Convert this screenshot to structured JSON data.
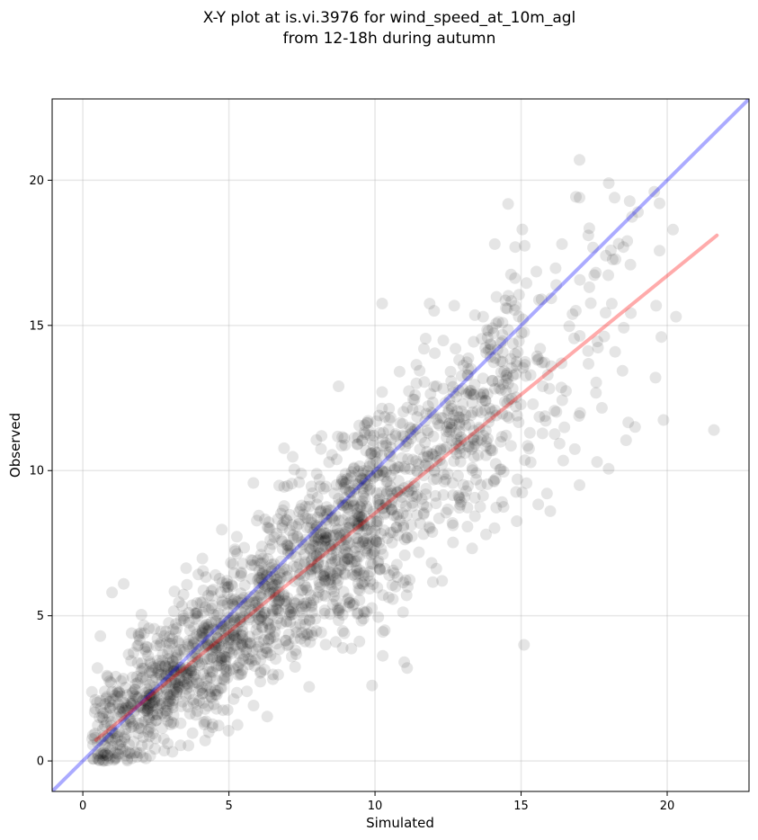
{
  "chart_data": {
    "type": "scatter",
    "title_line1": "X-Y plot at is.vi.3976 for wind_speed_at_10m_agl",
    "title_line2": "from 12-18h during autumn",
    "xlabel": "Simulated",
    "ylabel": "Observed",
    "xlim": [
      -1.05,
      22.8
    ],
    "ylim": [
      -1.05,
      22.8
    ],
    "xticks": [
      0,
      5,
      10,
      15,
      20
    ],
    "yticks": [
      0,
      5,
      10,
      15,
      20
    ],
    "grid": true,
    "point_color": "#000000",
    "point_alpha": 0.1,
    "points_source": "dense cloud of ~2000 observations centered along y≈0.83x+0.35, spread ±~1.6 m/s, plus visible outliers listed below",
    "outliers": [
      {
        "x": 17.0,
        "y": 20.7
      },
      {
        "x": 18.0,
        "y": 19.9
      },
      {
        "x": 18.2,
        "y": 19.4
      },
      {
        "x": 17.0,
        "y": 19.4
      },
      {
        "x": 19.0,
        "y": 18.9
      },
      {
        "x": 20.2,
        "y": 18.3
      },
      {
        "x": 17.3,
        "y": 18.1
      },
      {
        "x": 14.1,
        "y": 17.8
      },
      {
        "x": 14.8,
        "y": 17.7
      },
      {
        "x": 16.4,
        "y": 17.8
      },
      {
        "x": 18.5,
        "y": 17.7
      },
      {
        "x": 17.9,
        "y": 17.4
      },
      {
        "x": 20.3,
        "y": 15.3
      },
      {
        "x": 21.6,
        "y": 11.4
      },
      {
        "x": 15.1,
        "y": 4.0
      },
      {
        "x": 16.0,
        "y": 8.6
      },
      {
        "x": 0.5,
        "y": 3.2
      },
      {
        "x": 0.6,
        "y": 4.3
      },
      {
        "x": 0.7,
        "y": 0.0
      },
      {
        "x": 1.0,
        "y": 5.8
      },
      {
        "x": 1.4,
        "y": 6.1
      },
      {
        "x": 11.0,
        "y": 3.4
      },
      {
        "x": 11.1,
        "y": 3.2
      },
      {
        "x": 9.9,
        "y": 2.6
      },
      {
        "x": 13.7,
        "y": 15.3
      },
      {
        "x": 15.7,
        "y": 15.9
      },
      {
        "x": 19.8,
        "y": 14.6
      },
      {
        "x": 19.6,
        "y": 13.2
      },
      {
        "x": 18.9,
        "y": 11.5
      },
      {
        "x": 17.6,
        "y": 10.3
      },
      {
        "x": 17.0,
        "y": 9.5
      },
      {
        "x": 13.8,
        "y": 7.8
      }
    ],
    "series": [
      {
        "name": "",
        "type": "line",
        "color": "#0000ff",
        "alpha": 0.33,
        "x": [
          -1.05,
          22.8
        ],
        "y": [
          -1.05,
          22.8
        ]
      },
      {
        "name": "",
        "type": "line",
        "color": "#ff0000",
        "alpha": 0.33,
        "x": [
          0.45,
          21.7
        ],
        "y": [
          0.72,
          18.1
        ]
      }
    ]
  }
}
